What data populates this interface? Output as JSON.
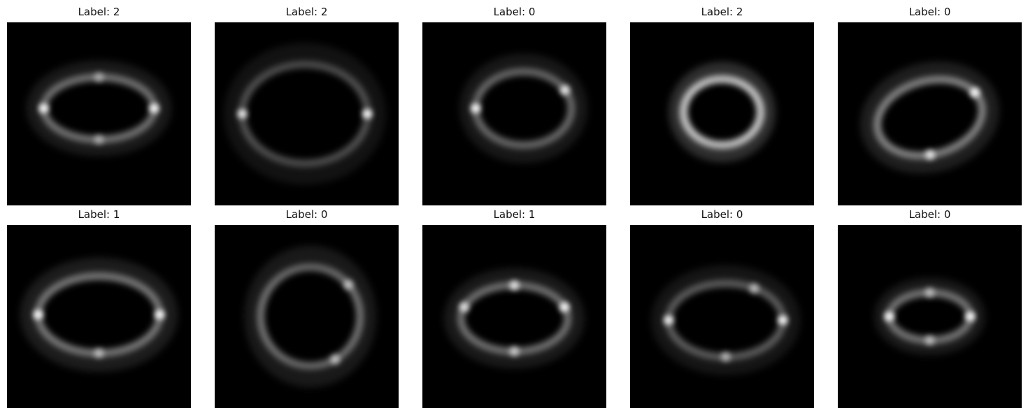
{
  "panels": [
    {
      "title": "Label: 2",
      "lens_center": [
        0.5,
        0.47
      ],
      "ring_radius_x": 0.3,
      "ring_radius_y": 0.17,
      "ring_radius_y_scale": 0.55,
      "ring_tilt": 0,
      "ring_brightness": 0.55,
      "knots": [
        {
          "a": 0,
          "b": 0.95
        },
        {
          "a": 180,
          "b": 0.95
        },
        {
          "a": 270,
          "b": 0.45
        },
        {
          "a": 90,
          "b": 0.45
        }
      ]
    },
    {
      "title": "Label: 2",
      "lens_center": [
        0.49,
        0.5
      ],
      "ring_radius_x": 0.34,
      "ring_radius_y": 0.27,
      "ring_radius_y_scale": 0.8,
      "ring_tilt": 0,
      "ring_brightness": 0.4,
      "knots": [
        {
          "a": 0,
          "b": 0.95
        },
        {
          "a": 180,
          "b": 0.85
        }
      ]
    },
    {
      "title": "Label: 0",
      "lens_center": [
        0.55,
        0.47
      ],
      "ring_radius_x": 0.26,
      "ring_radius_y": 0.2,
      "ring_radius_y_scale": 0.75,
      "ring_tilt": 0,
      "ring_brightness": 0.5,
      "knots": [
        {
          "a": 180,
          "b": 0.95
        },
        {
          "a": 30,
          "b": 0.85
        }
      ]
    },
    {
      "title": "Label: 2",
      "lens_center": [
        0.5,
        0.49
      ],
      "ring_radius_x": 0.21,
      "ring_radius_y": 0.18,
      "ring_radius_y_scale": 0.85,
      "ring_tilt": 0,
      "ring_brightness": 1.0,
      "knots": []
    },
    {
      "title": "Label: 0",
      "lens_center": [
        0.5,
        0.52
      ],
      "ring_radius_x": 0.29,
      "ring_radius_y": 0.2,
      "ring_radius_y_scale": 0.7,
      "ring_tilt": -15,
      "ring_brightness": 0.65,
      "knots": [
        {
          "a": 20,
          "b": 0.95
        },
        {
          "a": 260,
          "b": 0.8
        }
      ]
    },
    {
      "title": "Label: 1",
      "lens_center": [
        0.5,
        0.49
      ],
      "ring_radius_x": 0.33,
      "ring_radius_y": 0.21,
      "ring_radius_y_scale": 0.65,
      "ring_tilt": 0,
      "ring_brightness": 0.6,
      "knots": [
        {
          "a": 0,
          "b": 0.95
        },
        {
          "a": 180,
          "b": 0.95
        },
        {
          "a": 270,
          "b": 0.55
        }
      ]
    },
    {
      "title": "Label: 0",
      "lens_center": [
        0.52,
        0.5
      ],
      "ring_radius_x": 0.27,
      "ring_radius_y": 0.27,
      "ring_radius_y_scale": 1.0,
      "ring_tilt": 0,
      "ring_brightness": 0.55,
      "knots": [
        {
          "a": 300,
          "b": 0.6
        },
        {
          "a": 40,
          "b": 0.6
        }
      ]
    },
    {
      "title": "Label: 1",
      "lens_center": [
        0.5,
        0.51
      ],
      "ring_radius_x": 0.29,
      "ring_radius_y": 0.18,
      "ring_radius_y_scale": 0.62,
      "ring_tilt": 0,
      "ring_brightness": 0.55,
      "knots": [
        {
          "a": 20,
          "b": 0.95
        },
        {
          "a": 160,
          "b": 0.8
        },
        {
          "a": 270,
          "b": 0.65
        },
        {
          "a": 90,
          "b": 0.8
        }
      ]
    },
    {
      "title": "Label: 0",
      "lens_center": [
        0.52,
        0.52
      ],
      "ring_radius_x": 0.31,
      "ring_radius_y": 0.2,
      "ring_radius_y_scale": 0.65,
      "ring_tilt": 0,
      "ring_brightness": 0.45,
      "knots": [
        {
          "a": 0,
          "b": 0.95
        },
        {
          "a": 180,
          "b": 0.9
        },
        {
          "a": 270,
          "b": 0.55
        },
        {
          "a": 60,
          "b": 0.6
        }
      ]
    },
    {
      "title": "Label: 0",
      "lens_center": [
        0.5,
        0.5
      ],
      "ring_radius_x": 0.22,
      "ring_radius_y": 0.13,
      "ring_radius_y_scale": 0.6,
      "ring_tilt": 0,
      "ring_brightness": 0.55,
      "knots": [
        {
          "a": 0,
          "b": 0.95
        },
        {
          "a": 180,
          "b": 0.95
        },
        {
          "a": 270,
          "b": 0.55
        },
        {
          "a": 90,
          "b": 0.55
        }
      ]
    }
  ],
  "colors": {
    "background": "#000000",
    "ring": "#ffffff",
    "title_text": "#111111"
  }
}
